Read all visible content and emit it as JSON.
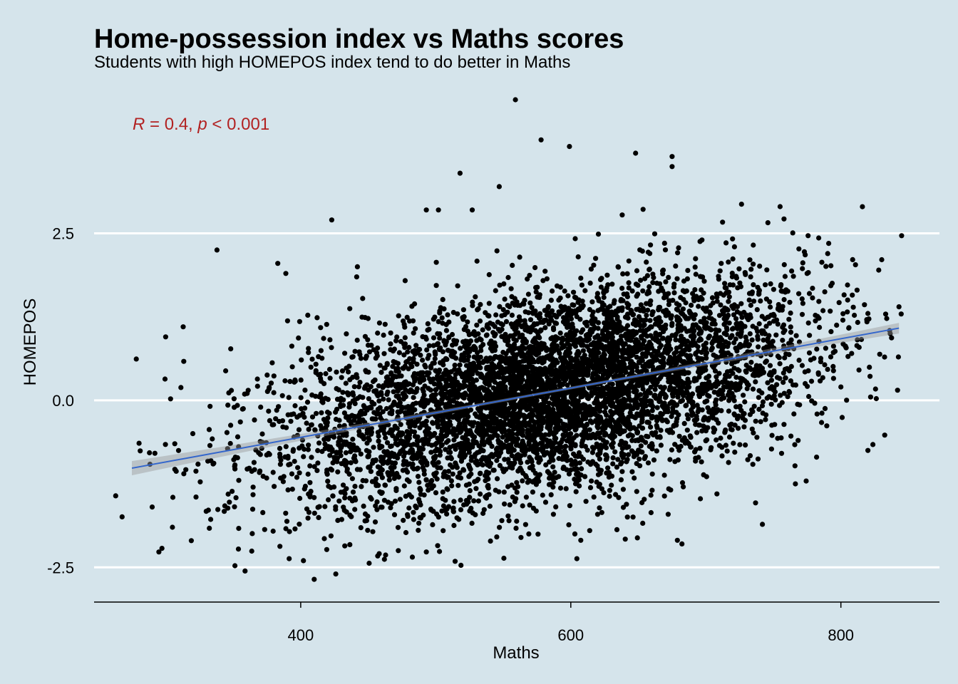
{
  "chart_data": {
    "type": "scatter",
    "title": "Home-possession index vs Maths scores",
    "subtitle": "Students with high HOMEPOS index tend to do better in Maths",
    "xlabel": "Maths",
    "ylabel": "HOMEPOS",
    "xlim": [
      247,
      873
    ],
    "ylim": [
      -3.02,
      4.5
    ],
    "x_ticks": [
      400,
      600,
      800
    ],
    "x_tick_labels": [
      "400",
      "600",
      "800"
    ],
    "y_ticks": [
      -2.5,
      0,
      2.5
    ],
    "y_tick_labels": [
      "-2.5",
      "0.0",
      "2.5"
    ],
    "grid": {
      "horizontal_major": true,
      "vertical": false
    },
    "annotation": {
      "r_symbol": "R",
      "r_text": " = 0.4, ",
      "p_symbol": "p",
      "p_text": " < 0.001",
      "x": 280,
      "y": 4.1
    },
    "regression": {
      "intercept": -2.03,
      "slope": 0.00369,
      "x_range": [
        275,
        843
      ],
      "color": "#3366cc"
    },
    "point_cloud": {
      "n": 6000,
      "x_mean": 585,
      "x_sd": 95,
      "y_resid_sd": 0.75
    },
    "points": [
      [
        559,
        4.5
      ],
      [
        578,
        3.9
      ],
      [
        599,
        3.8
      ],
      [
        518,
        3.4
      ],
      [
        547,
        3.2
      ],
      [
        648,
        3.7
      ],
      [
        675,
        3.65
      ],
      [
        675,
        3.5
      ],
      [
        423,
        2.7
      ],
      [
        493,
        2.85
      ],
      [
        502,
        2.85
      ],
      [
        527,
        2.85
      ],
      [
        755,
        2.9
      ],
      [
        843,
        1.4
      ],
      [
        812,
        1.65
      ],
      [
        820,
        1.3
      ],
      [
        822,
        0.05
      ],
      [
        820,
        -0.75
      ],
      [
        338,
        2.25
      ],
      [
        300,
        0.95
      ],
      [
        313,
        1.1
      ],
      [
        263,
        -1.43
      ],
      [
        295,
        -2.27
      ],
      [
        305,
        -1.9
      ],
      [
        319,
        -2.1
      ],
      [
        410,
        -2.68
      ],
      [
        402,
        -2.4
      ],
      [
        426,
        -2.6
      ],
      [
        462,
        -2.38
      ],
      [
        493,
        -2.27
      ],
      [
        614,
        -1.95
      ],
      [
        603,
        -2.0
      ],
      [
        383,
        2.05
      ],
      [
        389,
        1.9
      ],
      [
        442,
        2.0
      ],
      [
        775,
        1.9
      ],
      [
        791,
        2.35
      ],
      [
        782,
        -0.85
      ],
      [
        766,
        -0.98
      ],
      [
        800,
        0.2
      ]
    ],
    "point_color": "#000000"
  }
}
